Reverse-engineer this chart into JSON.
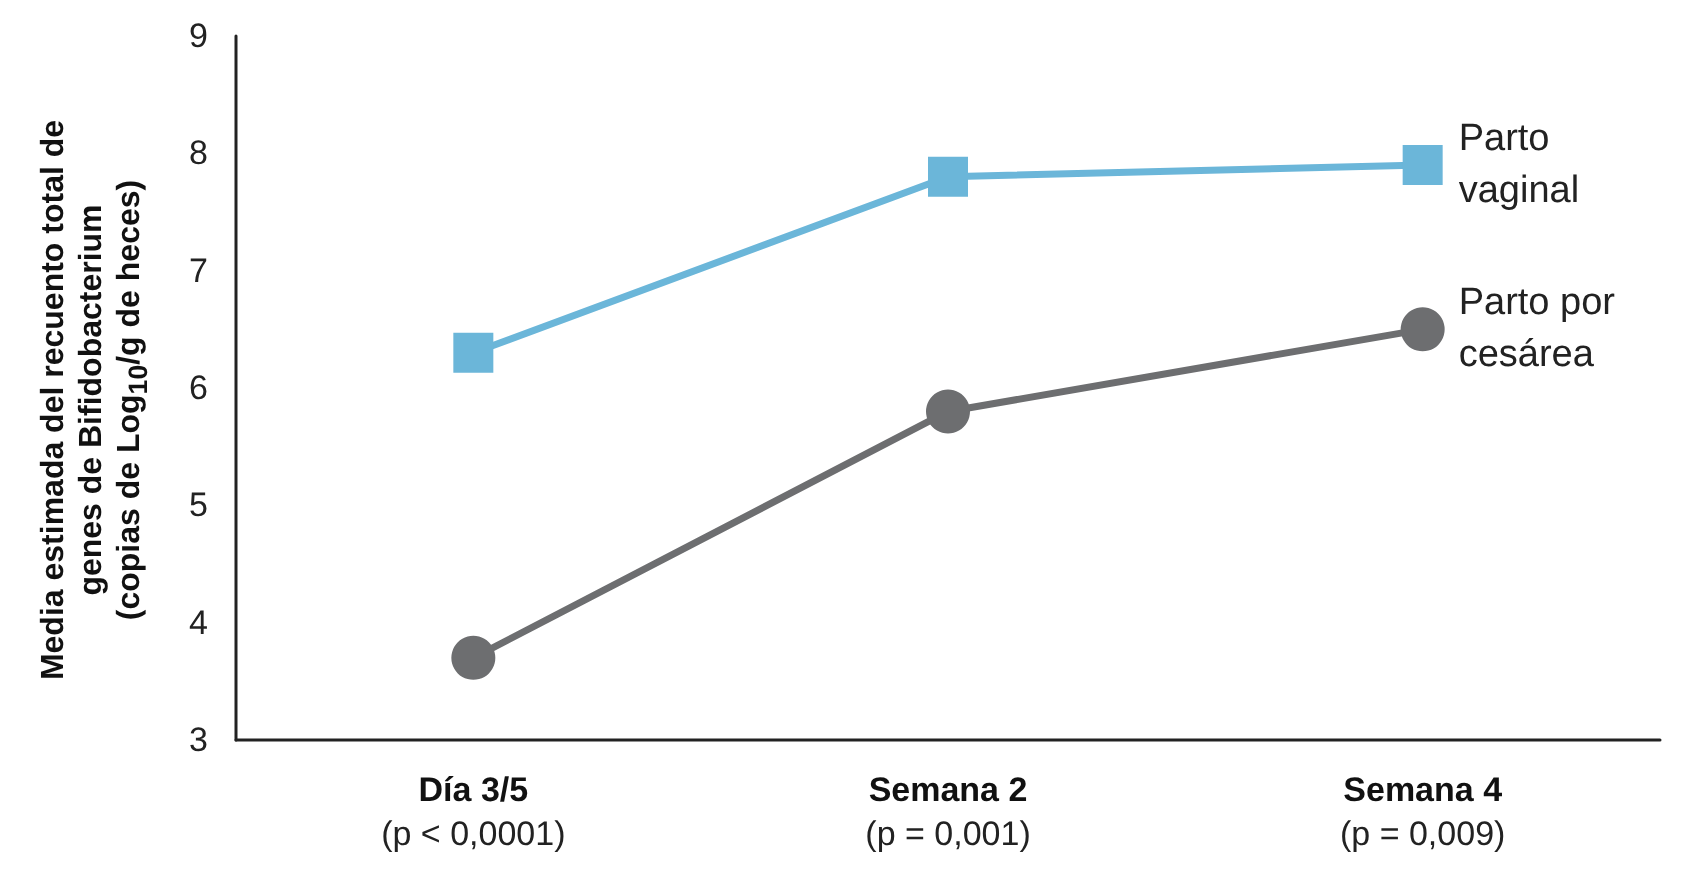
{
  "chart_data": {
    "type": "line",
    "ylabel": "Media estimada del recuento total de\ngenes de Bifidobacterium\n(copias de Log$_{10}$/g de heces)",
    "categories": [
      "Día 3/5\n(p < 0,0001)",
      "Semana 2\n(p = 0,001)",
      "Semana 4\n(p = 0,009)"
    ],
    "series": [
      {
        "name": "Parto vaginal",
        "color": "#6bb6d9",
        "marker": "square",
        "values": [
          6.3,
          7.8,
          7.9
        ]
      },
      {
        "name": "Parto por cesárea",
        "color": "#6d6e70",
        "marker": "circle",
        "values": [
          3.7,
          5.8,
          6.5
        ]
      }
    ],
    "ylim": [
      3,
      9
    ],
    "yticks": [
      3,
      4,
      5,
      6,
      7,
      8,
      9
    ],
    "grid": false,
    "legend": false
  }
}
